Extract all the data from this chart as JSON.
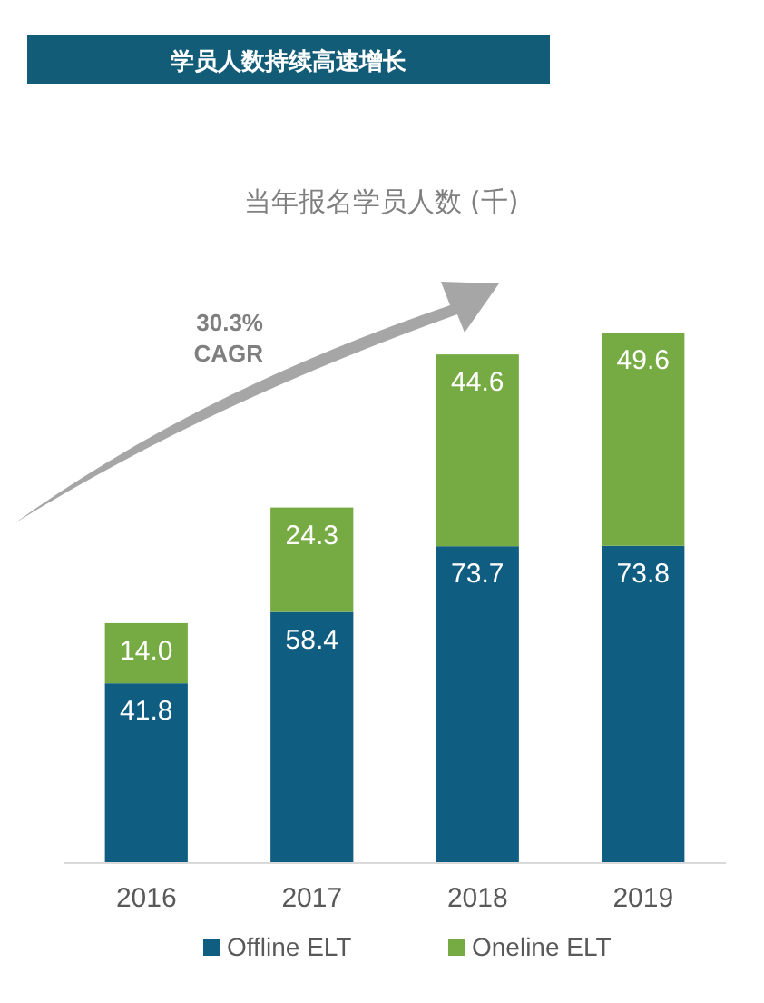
{
  "chart_data": {
    "type": "bar",
    "title": "学员人数持续高速增长",
    "subtitle": "当年报名学员人数 (千)",
    "categories": [
      "2016",
      "2017",
      "2018",
      "2019"
    ],
    "stacked": true,
    "legend": "bottom",
    "annotations": [
      "30.3%\nCAGR"
    ],
    "series": [
      {
        "name": "Offline ELT",
        "color": "#0f5d80",
        "values": [
          41.8,
          58.4,
          73.7,
          73.8
        ],
        "value_labels": [
          "41.8",
          "58.4",
          "73.7",
          "73.8"
        ]
      },
      {
        "name": "Oneline ELT",
        "color": "#76aa43",
        "values": [
          14.0,
          24.3,
          44.6,
          49.6
        ],
        "value_labels": [
          "14.0",
          "24.3",
          "44.6",
          "49.6"
        ]
      }
    ]
  }
}
